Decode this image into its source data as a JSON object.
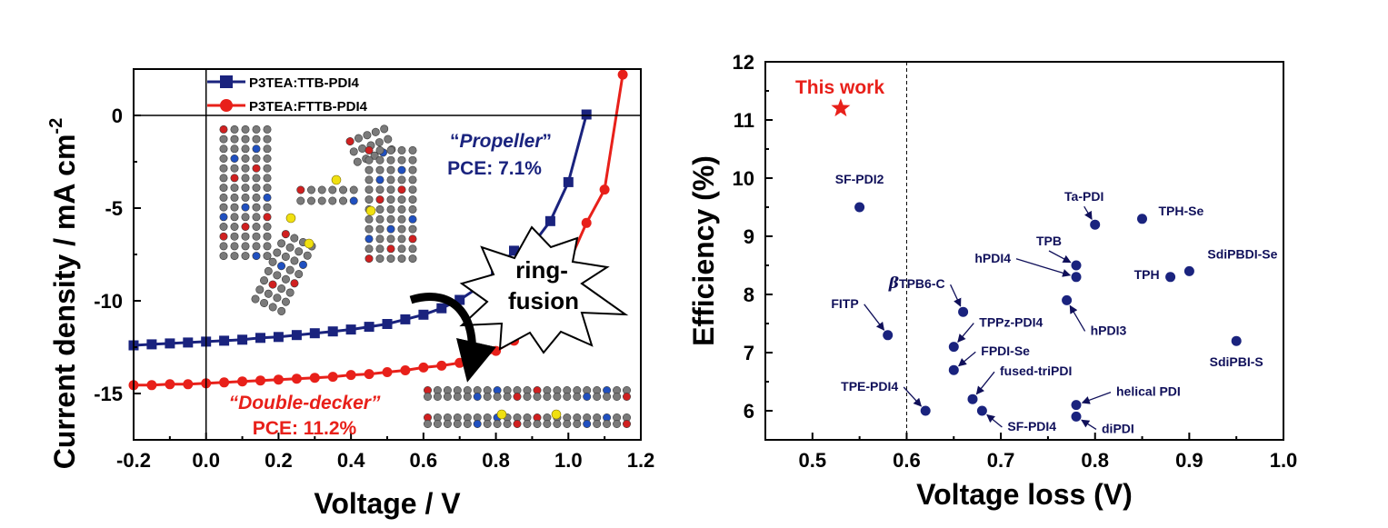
{
  "chart_data": [
    {
      "type": "line",
      "xlabel": "Voltage / V",
      "ylabel": "Current density / mA cm",
      "ylabel_sup": "-2",
      "xlim": [
        -0.2,
        1.2
      ],
      "ylim": [
        -17.5,
        2.5
      ],
      "xticks": [
        "-0.2",
        "0.0",
        "0.2",
        "0.4",
        "0.6",
        "0.8",
        "1.0",
        "1.2"
      ],
      "yticks": [
        "-15",
        "-10",
        "-5",
        "0"
      ],
      "legend_position": "top-left",
      "series": [
        {
          "name": "P3TEA:TTB-PDI4",
          "color": "#1a237e",
          "marker": "square",
          "x": [
            -0.2,
            -0.15,
            -0.1,
            -0.05,
            0,
            0.05,
            0.1,
            0.15,
            0.2,
            0.25,
            0.3,
            0.35,
            0.4,
            0.45,
            0.5,
            0.55,
            0.6,
            0.65,
            0.7,
            0.75,
            0.8,
            0.85,
            0.9,
            0.95,
            1.0,
            1.05
          ],
          "y": [
            -12.4,
            -12.35,
            -12.3,
            -12.25,
            -12.2,
            -12.15,
            -12.1,
            -12.0,
            -11.95,
            -11.85,
            -11.75,
            -11.65,
            -11.55,
            -11.4,
            -11.25,
            -11.0,
            -10.75,
            -10.4,
            -9.95,
            -9.3,
            -8.4,
            -7.3,
            -7.0,
            -5.7,
            -3.6,
            0.05
          ]
        },
        {
          "name": "P3TEA:FTTB-PDI4",
          "color": "#e8201a",
          "marker": "circle",
          "x": [
            -0.2,
            -0.15,
            -0.1,
            -0.05,
            0,
            0.05,
            0.1,
            0.15,
            0.2,
            0.25,
            0.3,
            0.35,
            0.4,
            0.45,
            0.5,
            0.55,
            0.6,
            0.65,
            0.7,
            0.75,
            0.8,
            0.85,
            0.9,
            0.95,
            1.0,
            1.05,
            1.1,
            1.15
          ],
          "y": [
            -14.55,
            -14.55,
            -14.5,
            -14.5,
            -14.45,
            -14.4,
            -14.35,
            -14.3,
            -14.25,
            -14.2,
            -14.15,
            -14.1,
            -14.0,
            -13.95,
            -13.85,
            -13.75,
            -13.6,
            -13.5,
            -13.35,
            -13.05,
            -12.7,
            -12.15,
            -11.2,
            -10.2,
            -8.0,
            -5.8,
            -4.0,
            2.2
          ]
        }
      ],
      "annotations": {
        "propeller_name": "Propeller",
        "propeller_pce": "PCE: 7.1%",
        "decker_name": "Double-decker",
        "decker_pce": "PCE: 11.2%",
        "burst_line1": "ring-",
        "burst_line2": "fusion"
      }
    },
    {
      "type": "scatter",
      "xlabel": "Voltage loss (V)",
      "ylabel": "Efficiency (%)",
      "xlim": [
        0.45,
        1.0
      ],
      "ylim": [
        5.5,
        12
      ],
      "xticks": [
        "0.5",
        "0.6",
        "0.7",
        "0.8",
        "0.9",
        "1.0"
      ],
      "yticks": [
        "6",
        "7",
        "8",
        "9",
        "10",
        "11",
        "12"
      ],
      "reference_line_x": 0.6,
      "highlight": {
        "label": "This work",
        "x": 0.53,
        "y": 11.2,
        "color": "#e8201a"
      },
      "points": [
        {
          "label": "SF-PDI2",
          "x": 0.55,
          "y": 9.5
        },
        {
          "label": "Ta-PDI",
          "x": 0.8,
          "y": 9.2
        },
        {
          "label": "TPH-Se",
          "x": 0.85,
          "y": 9.3
        },
        {
          "label": "TPB",
          "x": 0.78,
          "y": 8.5
        },
        {
          "label": "hPDI4",
          "x": 0.78,
          "y": 8.3
        },
        {
          "label": "TPH",
          "x": 0.88,
          "y": 8.3
        },
        {
          "label": "SdiPBDI-Se",
          "x": 0.9,
          "y": 8.4
        },
        {
          "label": "TPB6-C",
          "label_prefix": "β",
          "x": 0.66,
          "y": 7.7
        },
        {
          "label": "FITP",
          "x": 0.58,
          "y": 7.3
        },
        {
          "label": "hPDI3",
          "x": 0.77,
          "y": 7.9
        },
        {
          "label": "TPPz-PDI4",
          "x": 0.65,
          "y": 7.1
        },
        {
          "label": "FPDI-Se",
          "x": 0.65,
          "y": 6.7
        },
        {
          "label": "SdiPBI-S",
          "x": 0.95,
          "y": 7.2
        },
        {
          "label": "fused-triPDI",
          "x": 0.67,
          "y": 6.2
        },
        {
          "label": "TPE-PDI4",
          "x": 0.62,
          "y": 6.0
        },
        {
          "label": "SF-PDI4",
          "x": 0.68,
          "y": 6.0
        },
        {
          "label": "helical PDI",
          "x": 0.78,
          "y": 6.1
        },
        {
          "label": "diPDI",
          "x": 0.78,
          "y": 5.9
        }
      ]
    }
  ]
}
